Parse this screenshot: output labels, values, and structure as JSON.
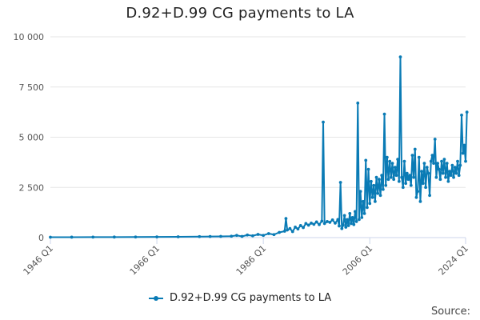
{
  "chart_data": {
    "type": "line",
    "title": "D.92+D.99 CG payments to LA",
    "xlabel": "",
    "ylabel": "",
    "ylim": [
      0,
      10000
    ],
    "yticks": [
      0,
      2500,
      5000,
      7500,
      10000
    ],
    "ytick_labels": [
      "0",
      "2 500",
      "5 000",
      "7 500",
      "10 000"
    ],
    "xlim": [
      1946.0,
      2024.0
    ],
    "xticks": [
      1946.0,
      1966.0,
      1986.0,
      2006.0,
      2024.0
    ],
    "xtick_labels": [
      "1946 Q1",
      "1966 Q1",
      "1986 Q1",
      "2006 Q1",
      "2024 Q1"
    ],
    "grid": "horizontal",
    "legend_position": "bottom",
    "color": "#0a7bb5",
    "series": [
      {
        "name": "D.92+D.99 CG payments to LA",
        "points": [
          [
            1946.0,
            20
          ],
          [
            1950.0,
            22
          ],
          [
            1954.0,
            25
          ],
          [
            1958.0,
            27
          ],
          [
            1962.0,
            30
          ],
          [
            1966.0,
            33
          ],
          [
            1970.0,
            40
          ],
          [
            1974.0,
            50
          ],
          [
            1976.0,
            55
          ],
          [
            1978.0,
            60
          ],
          [
            1980.0,
            70
          ],
          [
            1981.0,
            110
          ],
          [
            1982.0,
            60
          ],
          [
            1983.0,
            130
          ],
          [
            1984.0,
            90
          ],
          [
            1985.0,
            160
          ],
          [
            1986.0,
            110
          ],
          [
            1987.0,
            200
          ],
          [
            1988.0,
            150
          ],
          [
            1989.0,
            260
          ],
          [
            1990.0,
            320
          ],
          [
            1990.25,
            950
          ],
          [
            1990.5,
            380
          ],
          [
            1991.0,
            450
          ],
          [
            1991.5,
            300
          ],
          [
            1992.0,
            520
          ],
          [
            1992.5,
            430
          ],
          [
            1993.0,
            600
          ],
          [
            1993.5,
            500
          ],
          [
            1994.0,
            700
          ],
          [
            1994.5,
            620
          ],
          [
            1995.0,
            720
          ],
          [
            1995.5,
            660
          ],
          [
            1996.0,
            780
          ],
          [
            1996.5,
            650
          ],
          [
            1997.0,
            820
          ],
          [
            1997.25,
            5750
          ],
          [
            1997.5,
            700
          ],
          [
            1998.0,
            800
          ],
          [
            1998.5,
            760
          ],
          [
            1999.0,
            880
          ],
          [
            1999.5,
            720
          ],
          [
            2000.0,
            900
          ],
          [
            2000.25,
            580
          ],
          [
            2000.5,
            2750
          ],
          [
            2000.75,
            450
          ],
          [
            2001.0,
            620
          ],
          [
            2001.25,
            1100
          ],
          [
            2001.5,
            520
          ],
          [
            2001.75,
            900
          ],
          [
            2002.0,
            600
          ],
          [
            2002.25,
            1200
          ],
          [
            2002.5,
            700
          ],
          [
            2002.75,
            1000
          ],
          [
            2003.0,
            650
          ],
          [
            2003.25,
            1300
          ],
          [
            2003.5,
            800
          ],
          [
            2003.75,
            6700
          ],
          [
            2004.0,
            900
          ],
          [
            2004.25,
            2300
          ],
          [
            2004.5,
            1000
          ],
          [
            2004.75,
            1800
          ],
          [
            2005.0,
            1200
          ],
          [
            2005.25,
            3850
          ],
          [
            2005.5,
            1500
          ],
          [
            2005.75,
            3400
          ],
          [
            2006.0,
            1700
          ],
          [
            2006.25,
            2800
          ],
          [
            2006.5,
            2000
          ],
          [
            2006.75,
            2600
          ],
          [
            2007.0,
            1800
          ],
          [
            2007.25,
            3000
          ],
          [
            2007.5,
            2200
          ],
          [
            2007.75,
            2900
          ],
          [
            2008.0,
            2100
          ],
          [
            2008.25,
            3100
          ],
          [
            2008.5,
            2400
          ],
          [
            2008.75,
            6150
          ],
          [
            2009.0,
            2600
          ],
          [
            2009.25,
            4000
          ],
          [
            2009.5,
            2900
          ],
          [
            2009.75,
            3800
          ],
          [
            2010.0,
            3000
          ],
          [
            2010.25,
            3700
          ],
          [
            2010.5,
            2900
          ],
          [
            2010.75,
            3500
          ],
          [
            2011.0,
            3100
          ],
          [
            2011.25,
            3900
          ],
          [
            2011.5,
            2800
          ],
          [
            2011.75,
            9000
          ],
          [
            2012.0,
            3000
          ],
          [
            2012.25,
            2500
          ],
          [
            2012.5,
            3800
          ],
          [
            2012.75,
            2700
          ],
          [
            2013.0,
            3200
          ],
          [
            2013.25,
            2900
          ],
          [
            2013.5,
            3100
          ],
          [
            2013.75,
            2600
          ],
          [
            2014.0,
            4100
          ],
          [
            2014.25,
            3000
          ],
          [
            2014.5,
            4400
          ],
          [
            2014.75,
            2000
          ],
          [
            2015.0,
            2300
          ],
          [
            2015.25,
            4000
          ],
          [
            2015.5,
            1800
          ],
          [
            2015.75,
            3300
          ],
          [
            2016.0,
            2700
          ],
          [
            2016.25,
            3700
          ],
          [
            2016.5,
            2500
          ],
          [
            2016.75,
            3500
          ],
          [
            2017.0,
            3200
          ],
          [
            2017.25,
            2100
          ],
          [
            2017.5,
            3800
          ],
          [
            2017.75,
            4100
          ],
          [
            2018.0,
            3700
          ],
          [
            2018.25,
            4900
          ],
          [
            2018.5,
            3000
          ],
          [
            2018.75,
            3700
          ],
          [
            2019.0,
            3400
          ],
          [
            2019.25,
            2900
          ],
          [
            2019.5,
            3800
          ],
          [
            2019.75,
            3200
          ],
          [
            2020.0,
            3900
          ],
          [
            2020.25,
            3000
          ],
          [
            2020.5,
            3700
          ],
          [
            2020.75,
            2800
          ],
          [
            2021.0,
            3300
          ],
          [
            2021.25,
            3100
          ],
          [
            2021.5,
            3600
          ],
          [
            2021.75,
            3000
          ],
          [
            2022.0,
            3500
          ],
          [
            2022.25,
            3200
          ],
          [
            2022.5,
            3800
          ],
          [
            2022.75,
            3100
          ],
          [
            2023.0,
            3600
          ],
          [
            2023.25,
            6100
          ],
          [
            2023.5,
            4200
          ],
          [
            2023.75,
            4600
          ],
          [
            2024.0,
            3800
          ],
          [
            2024.25,
            6250
          ]
        ]
      }
    ]
  },
  "legend": {
    "label": "D.92+D.99 CG payments to LA"
  },
  "footer": {
    "source_label": "Source:"
  }
}
